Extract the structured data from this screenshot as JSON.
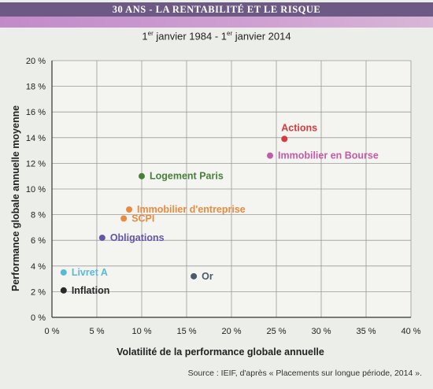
{
  "header": {
    "banner_title": "30 ANS - LA RENTABILITÉ ET LE RISQUE",
    "banner_color": "#6d5a84",
    "accent_color": "#c18bc9"
  },
  "chart_data": {
    "type": "scatter",
    "subtitle_parts": [
      "1",
      "er",
      " janvier 1984 - 1",
      "er",
      " janvier 2014"
    ],
    "xlabel": "Volatilité de la performance globale annuelle",
    "ylabel": "Performance globale annuelle moyenne",
    "xlim": [
      0,
      40
    ],
    "ylim": [
      0,
      20
    ],
    "x_ticks": [
      0,
      5,
      10,
      15,
      20,
      25,
      30,
      35,
      40
    ],
    "y_ticks": [
      0,
      2,
      4,
      6,
      8,
      10,
      12,
      14,
      16,
      18,
      20
    ],
    "x_tick_labels": [
      "0 %",
      "5 %",
      "10 %",
      "15 %",
      "20 %",
      "25 %",
      "30 %",
      "35 %",
      "40 %"
    ],
    "y_tick_labels": [
      "0 %",
      "2 %",
      "4 %",
      "6 %",
      "8 %",
      "10 %",
      "12 %",
      "14 %",
      "16 %",
      "18 %",
      "20 %"
    ],
    "grid": true,
    "points": [
      {
        "label": "Actions",
        "x": 25.9,
        "y": 13.9,
        "color": "#d63a3c",
        "label_pos": "above"
      },
      {
        "label": "Immobilier en Bourse",
        "x": 24.3,
        "y": 12.6,
        "color": "#c45ba5",
        "label_pos": "right"
      },
      {
        "label": "Logement Paris",
        "x": 10.0,
        "y": 11.0,
        "color": "#4a7f3b",
        "label_pos": "right"
      },
      {
        "label": "Immobilier d'entreprise",
        "x": 8.6,
        "y": 8.4,
        "color": "#e88b3f",
        "label_pos": "right"
      },
      {
        "label": "SCPI",
        "x": 8.0,
        "y": 7.7,
        "color": "#e88b3f",
        "label_pos": "right"
      },
      {
        "label": "Obligations",
        "x": 5.6,
        "y": 6.2,
        "color": "#6156a8",
        "label_pos": "right"
      },
      {
        "label": "Or",
        "x": 15.8,
        "y": 3.2,
        "color": "#4a5a6a",
        "label_pos": "right"
      },
      {
        "label": "Livret A",
        "x": 1.3,
        "y": 3.5,
        "color": "#5bb8d7",
        "label_pos": "right"
      },
      {
        "label": "Inflation",
        "x": 1.3,
        "y": 2.1,
        "color": "#2a2a2a",
        "label_pos": "right"
      }
    ]
  },
  "footer": {
    "source": "Source : IEIF, d'après « Placements sur longue période, 2014 »."
  }
}
